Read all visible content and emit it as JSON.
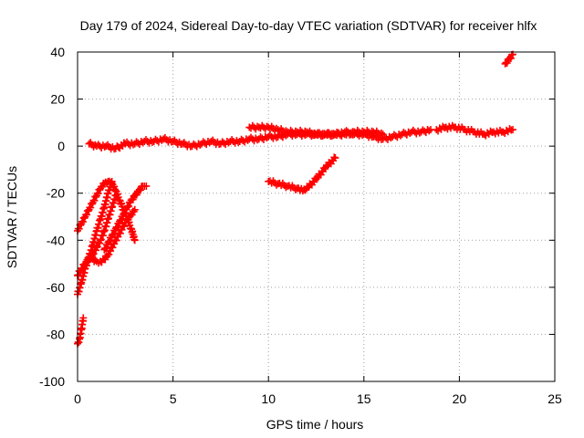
{
  "chart_data": {
    "type": "scatter",
    "title": "Day 179 of 2024, Sidereal Day-to-day VTEC variation (SDTVAR) for receiver hlfx",
    "xlabel": "GPS time / hours",
    "ylabel": "SDTVAR / TECUs",
    "xlim": [
      0,
      25
    ],
    "ylim": [
      -100,
      40
    ],
    "xticks": [
      0,
      5,
      10,
      15,
      20,
      25
    ],
    "yticks": [
      -100,
      -80,
      -60,
      -40,
      -20,
      0,
      20,
      40
    ],
    "grid": true,
    "marker": "plus",
    "color": "#ff0000",
    "segments": [
      {
        "x": [
          0.0,
          0.1,
          0.2,
          0.3
        ],
        "y": [
          -84,
          -82,
          -78,
          -73
        ]
      },
      {
        "x": [
          0.0,
          0.2,
          0.4,
          0.6,
          0.8,
          1.0,
          1.2,
          1.4,
          1.6,
          1.8
        ],
        "y": [
          -63,
          -58,
          -52,
          -47,
          -42,
          -36,
          -31,
          -26,
          -20,
          -15
        ]
      },
      {
        "x": [
          0.0,
          0.2,
          0.4,
          0.6,
          0.8,
          1.0,
          1.2,
          1.4,
          1.6,
          1.8,
          2.0
        ],
        "y": [
          -55,
          -52,
          -50,
          -48,
          -46,
          -43,
          -40,
          -36,
          -31,
          -26,
          -21
        ]
      },
      {
        "x": [
          0.0,
          0.2,
          0.4,
          0.6,
          0.8,
          1.0,
          1.2,
          1.4,
          1.6,
          1.8,
          2.0,
          2.2,
          2.4,
          2.6,
          2.8,
          3.0
        ],
        "y": [
          -36,
          -33,
          -30,
          -27,
          -24,
          -21,
          -18,
          -16,
          -15,
          -16,
          -19,
          -23,
          -27,
          -31,
          -35,
          -40
        ]
      },
      {
        "x": [
          0.6,
          0.8,
          1.0,
          1.2,
          1.4,
          1.6,
          1.8,
          2.0,
          2.2,
          2.4,
          2.6,
          2.8,
          3.0
        ],
        "y": [
          -47,
          -48,
          -49,
          -49,
          -48,
          -46,
          -43,
          -40,
          -37,
          -34,
          -31,
          -29,
          -27
        ]
      },
      {
        "x": [
          1.4,
          1.6,
          1.8,
          2.0,
          2.2,
          2.4,
          2.6,
          2.8,
          3.0,
          3.2,
          3.4,
          3.6
        ],
        "y": [
          -44,
          -41,
          -38,
          -35,
          -32,
          -29,
          -26,
          -23,
          -21,
          -19,
          -17,
          -17
        ]
      },
      {
        "x": [
          0.6,
          1.0,
          1.5,
          2.0,
          2.5,
          3.0,
          3.5,
          4.0,
          4.5,
          5.0,
          5.5,
          6.0,
          6.5,
          7.0,
          7.5,
          8.0,
          8.5,
          9.0,
          9.5,
          10.0,
          10.5,
          11.0,
          11.5,
          12.0,
          12.5,
          13.0,
          13.5,
          14.0,
          14.5,
          15.0,
          15.5,
          16.0,
          16.5,
          17.0,
          17.5,
          18.0,
          18.5
        ],
        "y": [
          1,
          0,
          0,
          -1,
          1,
          1,
          2,
          2,
          3,
          2,
          1,
          0,
          1,
          2,
          1,
          2,
          2,
          3,
          3,
          4,
          4,
          5,
          5,
          5,
          5,
          5,
          5,
          6,
          5,
          5,
          4,
          3,
          4,
          5,
          6,
          6,
          7
        ]
      },
      {
        "x": [
          9.0,
          9.5,
          10.0,
          10.5,
          11.0,
          11.5,
          12.0,
          12.5,
          13.0,
          13.5,
          14.0,
          14.5,
          15.0,
          15.5,
          16.0
        ],
        "y": [
          8,
          8,
          8,
          7,
          6,
          6,
          6,
          5,
          5,
          5,
          5,
          6,
          6,
          6,
          5
        ]
      },
      {
        "x": [
          10.0,
          10.5,
          11.0,
          11.5,
          11.8,
          12.0,
          12.5,
          13.0,
          13.5
        ],
        "y": [
          -15,
          -16,
          -17,
          -18,
          -19,
          -18,
          -14,
          -9,
          -5
        ]
      },
      {
        "x": [
          18.8,
          19.3,
          19.8,
          20.3,
          20.8,
          21.3,
          21.8,
          22.3,
          22.8
        ],
        "y": [
          7,
          8,
          8,
          7,
          6,
          5,
          6,
          6,
          7
        ]
      },
      {
        "x": [
          22.4,
          22.6,
          22.8
        ],
        "y": [
          35,
          37,
          39
        ]
      }
    ]
  }
}
